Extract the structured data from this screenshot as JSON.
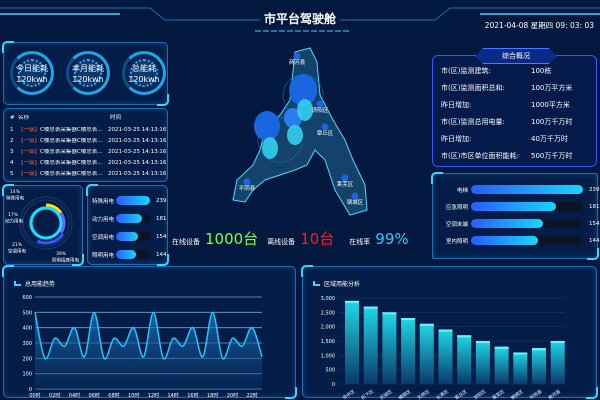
{
  "header": {
    "title": "市平台驾驶舱",
    "datetime": "2021-04-08 星期四 09: 03: 03"
  },
  "gauges": [
    {
      "label": "今日能耗",
      "value": "120kwh"
    },
    {
      "label": "本月能耗",
      "value": "120kwh"
    },
    {
      "label": "总能耗",
      "value": "120kwh"
    }
  ],
  "alarm_table": {
    "headers": [
      "#",
      "名称",
      "时间"
    ],
    "rows": [
      {
        "no": "1",
        "level": "【一级】",
        "name": "C楼总表采集器C楼总表...",
        "time": "2021-03-25 14:13:16"
      },
      {
        "no": "2",
        "level": "【一级】",
        "name": "C楼总表采集器C楼总表...",
        "time": "2021-03-25 14:13:16"
      },
      {
        "no": "3",
        "level": "【一级】",
        "name": "C楼总表采集器C楼总表...",
        "time": "2021-03-25 14:13:16"
      },
      {
        "no": "4",
        "level": "【一级】",
        "name": "C楼总表采集器C楼总表...",
        "time": "2021-03-25 14:13:16"
      },
      {
        "no": "5",
        "level": "【一级】",
        "name": "C楼总表采集器C楼总表...",
        "time": "2021-03-25 14:13:16"
      }
    ]
  },
  "donut": {
    "type": "pie",
    "slices": [
      {
        "name": "特殊用电",
        "pct": "14%",
        "value": 14,
        "color": "#ffe600"
      },
      {
        "name": "动力用电",
        "pct": "17%",
        "value": 17,
        "color": "#7b5cff"
      },
      {
        "name": "空调用电",
        "pct": "21%",
        "value": 21,
        "color": "#2a5cff"
      },
      {
        "name": "照明插座用电",
        "pct": "39%",
        "value": 39,
        "color": "#17e0ff"
      }
    ]
  },
  "left_bars": {
    "max": 239,
    "items": [
      {
        "label": "特殊用电",
        "value": 239
      },
      {
        "label": "动力用电",
        "value": 181
      },
      {
        "label": "空调用电",
        "value": 154
      },
      {
        "label": "照明用电",
        "value": 144
      }
    ]
  },
  "status": {
    "online_label": "在线设备",
    "online_value": "1000台",
    "offline_label": "离线设备",
    "offline_value": "10台",
    "rate_label": "在线率",
    "rate_value": "99%",
    "colors": {
      "online": "#7dff3a",
      "offline": "#ff1a1a",
      "rate": "#2ec8ff"
    }
  },
  "map": {
    "labels": [
      "商河县",
      "济阳区",
      "章丘区",
      "莱芜区",
      "钢城区",
      "平阴县"
    ]
  },
  "overview": {
    "title": "综合概况",
    "items": [
      {
        "k": "市(区)监测建筑:",
        "v": "100栋"
      },
      {
        "k": "市(区)监测面积总和:",
        "v": "100万平方米"
      },
      {
        "k": "昨日增加:",
        "v": "1000平方米"
      },
      {
        "k": "市(区)监测总用电量:",
        "v": "100万千万时"
      },
      {
        "k": "昨日增加:",
        "v": "40万千万时"
      },
      {
        "k": "市(区)市区单位面积能耗:",
        "v": "500万千万时"
      }
    ]
  },
  "right_bars": {
    "max": 239,
    "items": [
      {
        "label": "电梯",
        "value": 239
      },
      {
        "label": "应急照明",
        "value": 181
      },
      {
        "label": "空调末端",
        "value": 154
      },
      {
        "label": "室内照明",
        "value": 144
      }
    ]
  },
  "chart_data": [
    {
      "type": "area",
      "title": "总用能趋势",
      "x": [
        "00时",
        "01时",
        "02时",
        "03时",
        "04时",
        "05时",
        "06时",
        "07时",
        "08时",
        "09时",
        "10时",
        "11时",
        "12时",
        "13时",
        "14时",
        "15时",
        "16时",
        "17时",
        "18时",
        "19时",
        "20时",
        "21时",
        "22时",
        "23时"
      ],
      "xticks": [
        "00时",
        "02时",
        "04时",
        "06时",
        "08时",
        "10时",
        "12时",
        "14时",
        "16时",
        "18时",
        "20时",
        "22时"
      ],
      "values": [
        500,
        200,
        330,
        280,
        400,
        210,
        500,
        200,
        330,
        280,
        400,
        210,
        500,
        200,
        330,
        280,
        400,
        210,
        500,
        200,
        330,
        280,
        400,
        210
      ],
      "ylim": [
        0,
        600
      ],
      "yticks": [
        "0",
        "100",
        "200",
        "300",
        "400",
        "500",
        "600"
      ],
      "grid": true,
      "color": "#1ec8ff"
    },
    {
      "type": "bar",
      "title": "区域用能分析",
      "categories": [
        "市中区",
        "历下区",
        "历城区",
        "槐荫区",
        "天桥区",
        "长清区",
        "章丘区",
        "济阳区",
        "莱芜区",
        "钢城区",
        "平阴县",
        "商河县"
      ],
      "values": [
        2900,
        2700,
        2500,
        2300,
        2100,
        1900,
        1700,
        1500,
        1300,
        1100,
        1250,
        1500
      ],
      "ylim": [
        0,
        3000
      ],
      "yticks": [
        "0",
        "500",
        "1,000",
        "1,500",
        "2,000",
        "2,500",
        "3,000"
      ],
      "grid": true,
      "color": "#1fd8e8"
    }
  ]
}
